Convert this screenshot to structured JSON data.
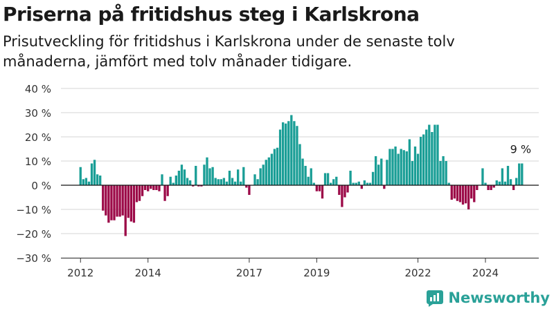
{
  "colors": {
    "positive": "#1a9e96",
    "negative": "#9c0a48",
    "brand": "#2aa198"
  },
  "brand": {
    "name": "Newsworthy"
  },
  "chart_data": {
    "type": "bar",
    "title": "Priserna på fritidshus steg i Karlskrona",
    "subtitle": "Prisutveckling för fritidshus i Karlskrona under de senaste tolv månaderna, jämfört med tolv månader tidigare.",
    "ylim": [
      -30,
      40
    ],
    "yticks": [
      40,
      30,
      20,
      10,
      0,
      -10,
      -20,
      -30
    ],
    "ytick_labels": [
      "40 %",
      "30 %",
      "20 %",
      "10 %",
      "0 %",
      "−10 %",
      "−20 %",
      "−30 %"
    ],
    "xticks": [
      2012,
      2014,
      2017,
      2019,
      2022,
      2024
    ],
    "xlim": [
      2011.42,
      2025.58
    ],
    "grid": true,
    "annotation": {
      "label": "9 %",
      "value": 9
    },
    "start_month": "2012-01",
    "values": [
      7.5,
      2.5,
      3,
      1.5,
      9,
      10.5,
      4.5,
      4,
      -10.5,
      -12.5,
      -15.5,
      -14.5,
      -14.5,
      -13,
      -13,
      -12.5,
      -21,
      -13.5,
      -15,
      -15.5,
      -7,
      -6.5,
      -4.5,
      -2,
      -2.5,
      -1.5,
      -2,
      -2,
      -2.5,
      4.5,
      -6.5,
      -4.5,
      3.5,
      1,
      4,
      6,
      8.5,
      6.5,
      3,
      2,
      -0.5,
      8,
      -0.5,
      -0.5,
      8.5,
      11.5,
      7,
      7.5,
      3,
      2.5,
      2.5,
      3,
      1.5,
      6,
      3,
      1.5,
      6.5,
      1.5,
      7.5,
      -1,
      -4,
      0,
      4.5,
      2.5,
      7,
      8.5,
      10.5,
      11.5,
      13,
      15,
      15.5,
      23,
      26,
      25.5,
      26.5,
      29,
      26.5,
      24.5,
      17,
      11,
      8,
      3.5,
      7,
      1,
      -2.5,
      -2.5,
      -5.5,
      5,
      5,
      1,
      2.5,
      3.5,
      -4,
      -9,
      -5,
      -3,
      6,
      1,
      1,
      1.5,
      -1.5,
      2,
      1,
      1,
      5.5,
      12,
      8.5,
      11,
      -1.5,
      10.5,
      15,
      15,
      16,
      13,
      15,
      14.5,
      14,
      19,
      10,
      16,
      13,
      20,
      21,
      23,
      25,
      22,
      25,
      25,
      10,
      12,
      10,
      1,
      -6,
      -5.5,
      -6.5,
      -7,
      -8,
      -7.5,
      -10,
      -5.5,
      -7,
      -2,
      0,
      7,
      1,
      -2,
      -2,
      -1,
      2,
      1.5,
      7,
      1.5,
      8,
      2.5,
      -2,
      3,
      9,
      9
    ]
  }
}
